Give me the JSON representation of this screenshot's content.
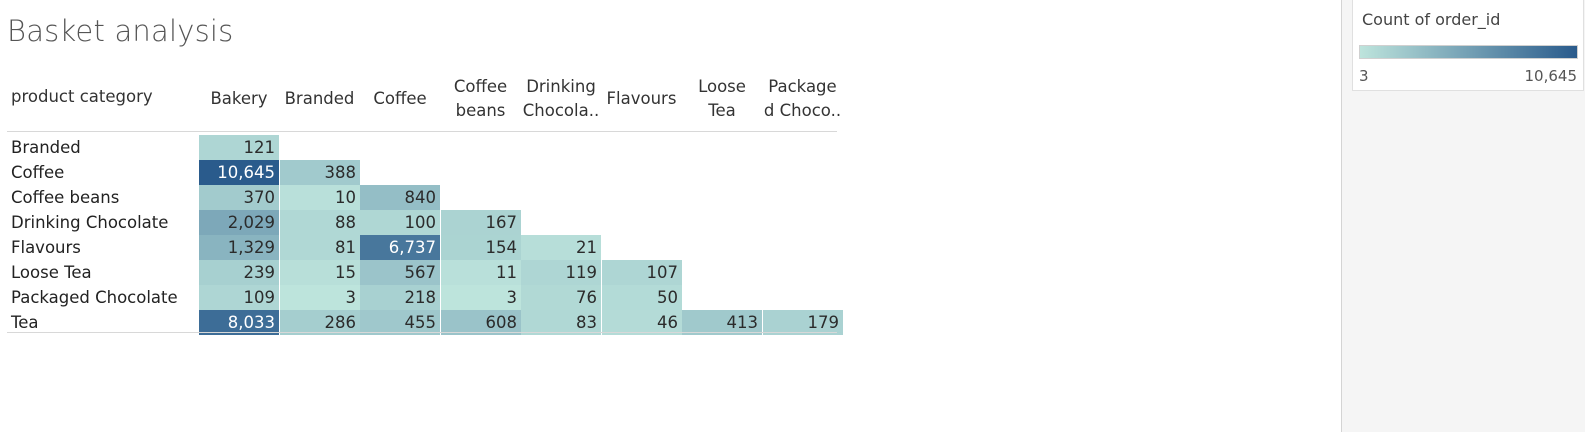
{
  "title": "Basket analysis",
  "legend": {
    "title": "Count of order_id",
    "min_label": "3",
    "max_label": "10,645",
    "color_low": "#bde4dc",
    "color_high": "#2a5b8c"
  },
  "row_header_title": "product category",
  "chart_data": {
    "type": "heatmap",
    "title": "Basket analysis",
    "row_field": "product category",
    "measure": "Count of order_id",
    "columns": [
      "Bakery",
      "Branded",
      "Coffee",
      "Coffee beans",
      "Drinking Chocola..",
      "Flavours",
      "Loose Tea",
      "Package d Choco.."
    ],
    "column_labels": [
      "Bakery",
      "Branded",
      "Coffee",
      "Coffee\nbeans",
      "Drinking\nChocola..",
      "Flavours",
      "Loose\nTea",
      "Package\nd Choco.."
    ],
    "rows": [
      "Branded",
      "Coffee",
      "Coffee beans",
      "Drinking Chocolate",
      "Flavours",
      "Loose Tea",
      "Packaged Chocolate",
      "Tea"
    ],
    "values": [
      [
        121,
        null,
        null,
        null,
        null,
        null,
        null,
        null
      ],
      [
        10645,
        388,
        null,
        null,
        null,
        null,
        null,
        null
      ],
      [
        370,
        10,
        840,
        null,
        null,
        null,
        null,
        null
      ],
      [
        2029,
        88,
        100,
        167,
        null,
        null,
        null,
        null
      ],
      [
        1329,
        81,
        6737,
        154,
        21,
        null,
        null,
        null
      ],
      [
        239,
        15,
        567,
        11,
        119,
        107,
        null,
        null
      ],
      [
        109,
        3,
        218,
        3,
        76,
        50,
        null,
        null
      ],
      [
        8033,
        286,
        455,
        608,
        83,
        46,
        413,
        179
      ]
    ],
    "color_range": [
      3,
      10645
    ]
  }
}
